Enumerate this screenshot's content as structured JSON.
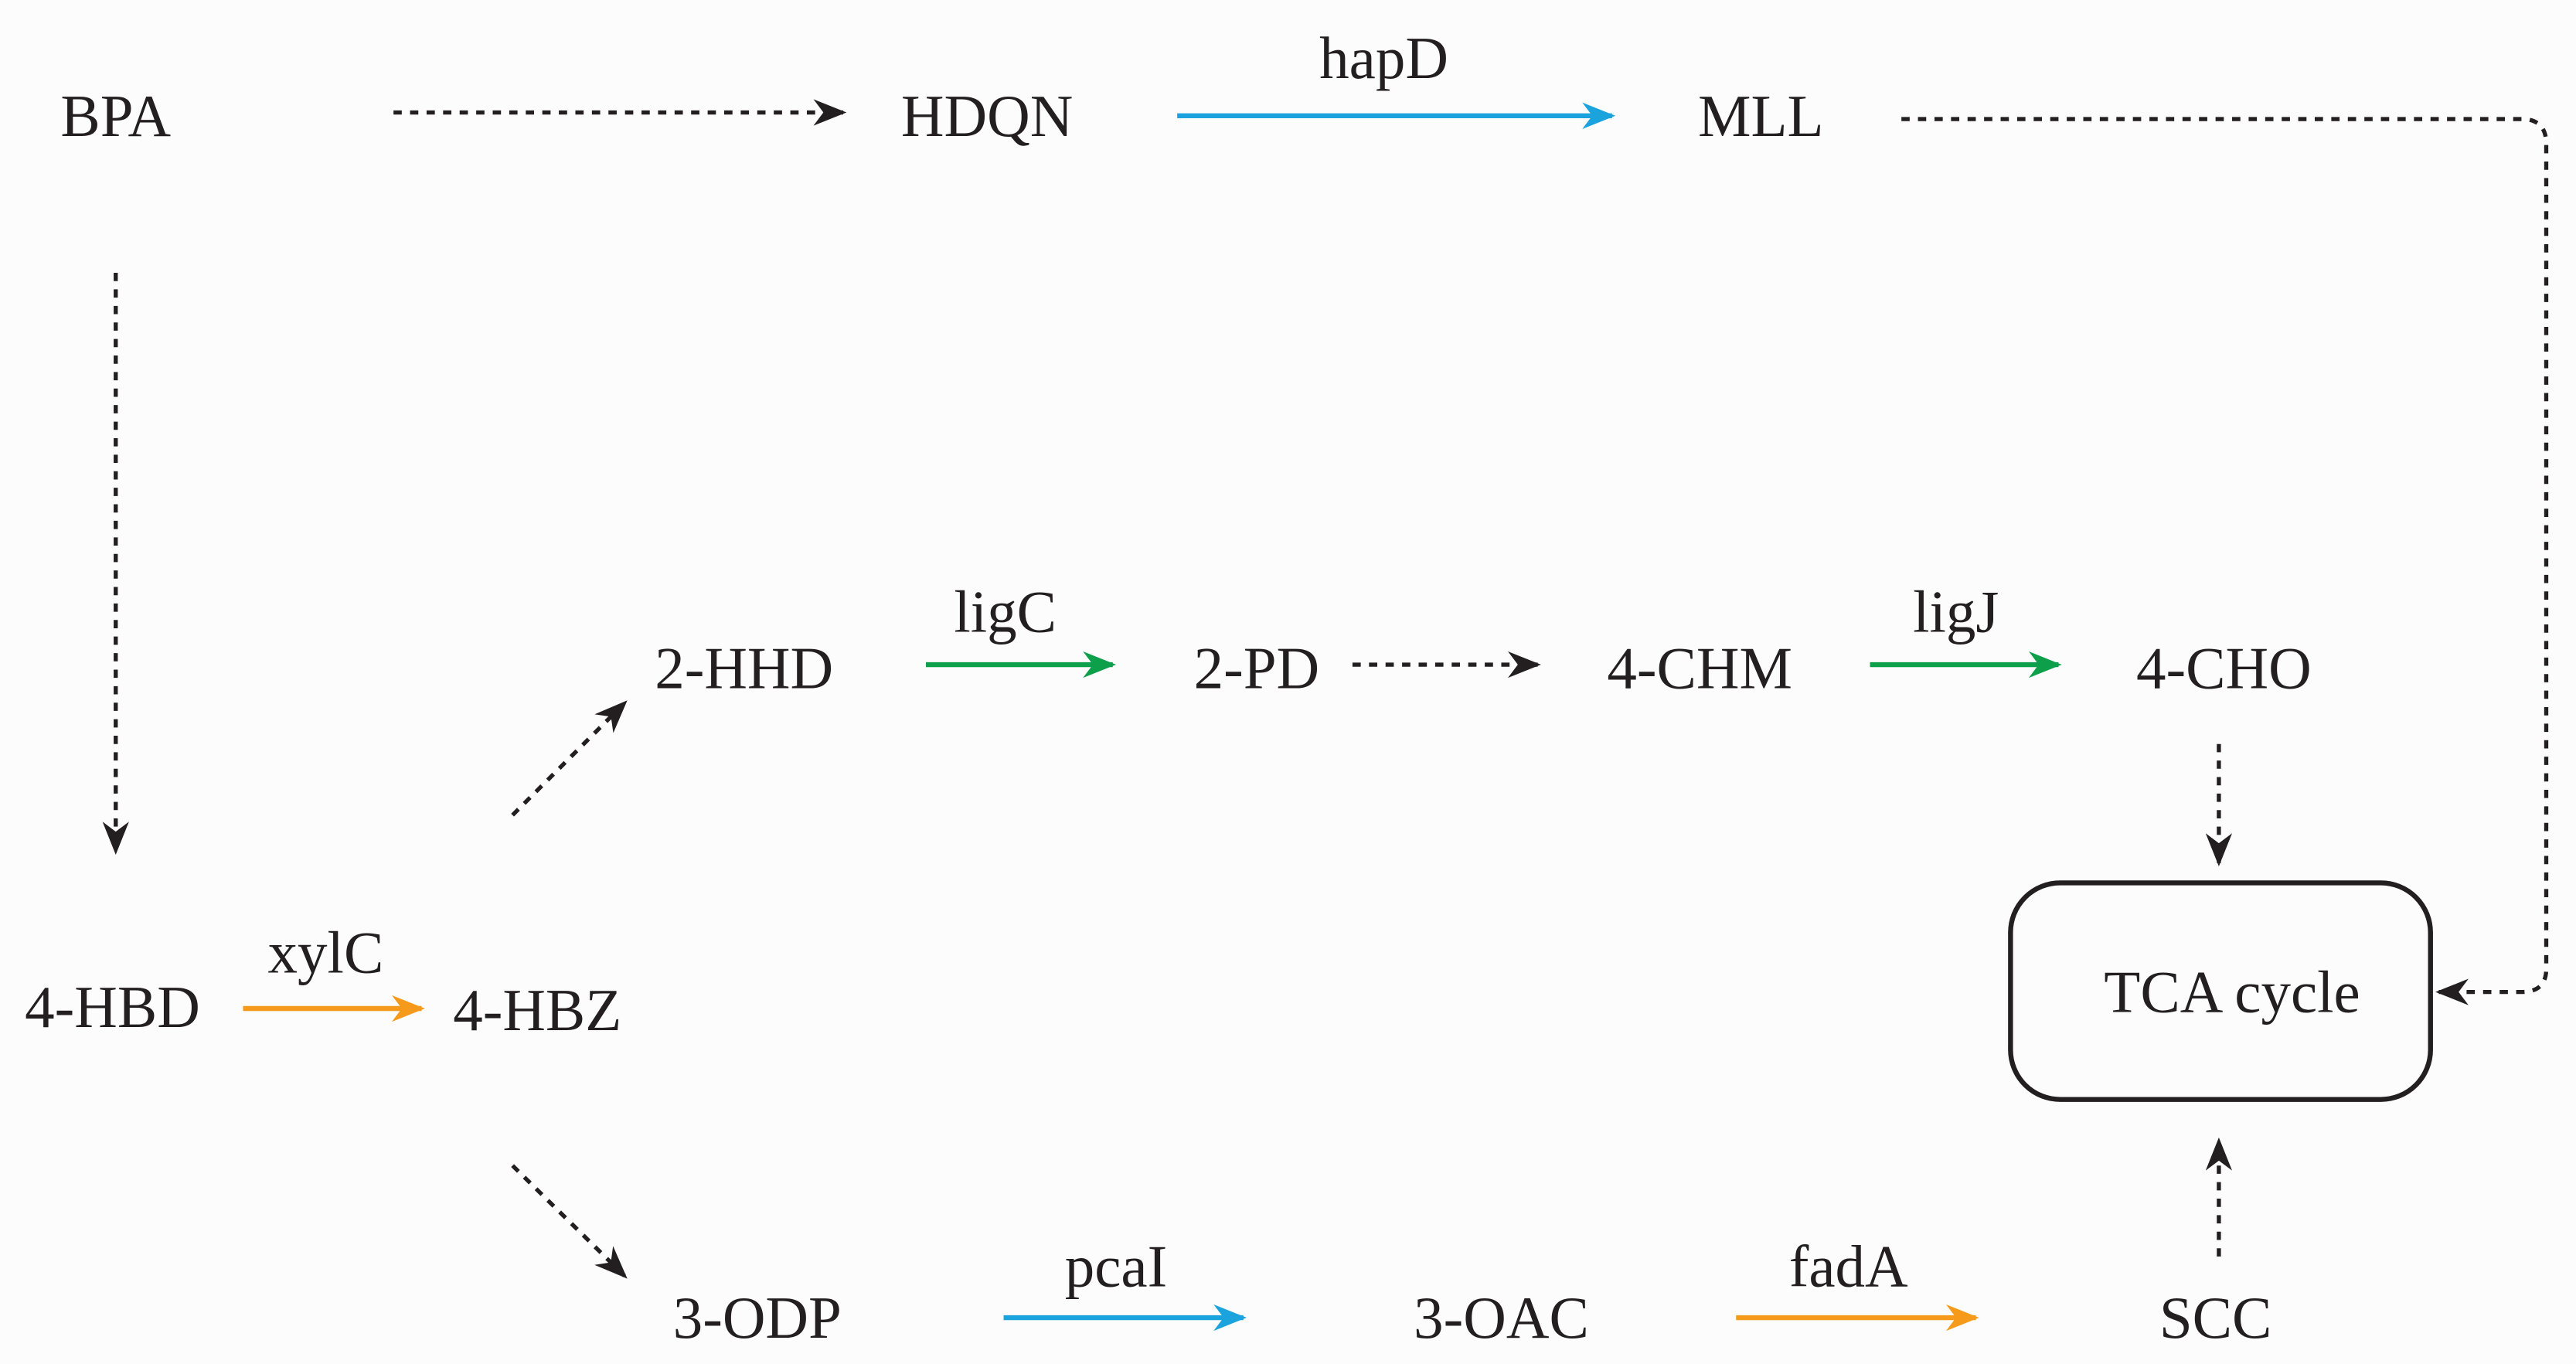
{
  "nodes": [
    {
      "label": "BPA"
    },
    {
      "label": "HDQN"
    },
    {
      "label": "MLL"
    },
    {
      "label": "2-HHD"
    },
    {
      "label": "2-PD"
    },
    {
      "label": "4-CHM"
    },
    {
      "label": "4-CHO"
    },
    {
      "label": "4-HBD"
    },
    {
      "label": "4-HBZ"
    },
    {
      "label": "3-ODP"
    },
    {
      "label": "3-OAC"
    },
    {
      "label": "SCC"
    },
    {
      "label": "TCA cycle"
    }
  ],
  "enzymes": [
    {
      "label": "hapD"
    },
    {
      "label": "ligC"
    },
    {
      "label": "ligJ"
    },
    {
      "label": "xylC"
    },
    {
      "label": "pcaI"
    },
    {
      "label": "fadA"
    }
  ]
}
